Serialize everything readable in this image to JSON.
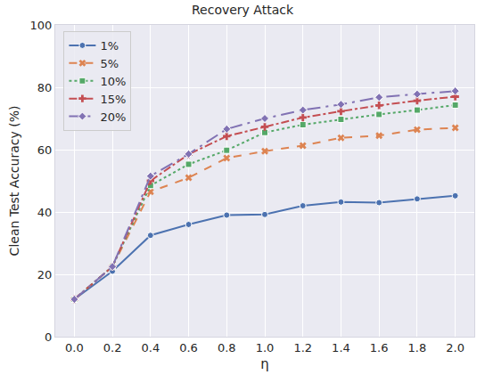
{
  "chart_data": {
    "type": "line",
    "title": "Recovery Attack",
    "x_label": "η",
    "y_label": "Clean Test Accuracy (%)",
    "x": [
      0.0,
      0.2,
      0.4,
      0.6,
      0.8,
      1.0,
      1.2,
      1.4,
      1.6,
      1.8,
      2.0
    ],
    "series": [
      {
        "name": "1%",
        "color": "#4c72b0",
        "marker": "circle",
        "line_style": "solid",
        "values": [
          12,
          21,
          32.5,
          36,
          39,
          39.2,
          42,
          43.2,
          43,
          44.2,
          45.2
        ]
      },
      {
        "name": "5%",
        "color": "#dd8452",
        "marker": "x",
        "line_style": "dash",
        "values": [
          12,
          22.5,
          46.5,
          51,
          57.3,
          59.5,
          61.3,
          63.8,
          64.5,
          66.4,
          67
        ]
      },
      {
        "name": "10%",
        "color": "#55a868",
        "marker": "square",
        "line_style": "dot",
        "values": [
          12,
          22.5,
          48.5,
          55.3,
          59.8,
          65.5,
          68,
          69.7,
          71.3,
          72.7,
          74.3
        ]
      },
      {
        "name": "15%",
        "color": "#c44e52",
        "marker": "cross",
        "line_style": "dashdot",
        "values": [
          12,
          22.5,
          50,
          58.5,
          64.3,
          67.3,
          70.3,
          72.3,
          74.2,
          75.7,
          77
        ]
      },
      {
        "name": "20%",
        "color": "#8172b3",
        "marker": "diamond",
        "line_style": "longdashdot",
        "values": [
          12,
          22.5,
          51.5,
          58.6,
          66.6,
          70,
          72.7,
          74.5,
          76.8,
          77.8,
          78.8
        ]
      }
    ],
    "xlim": [
      -0.1,
      2.1
    ],
    "xticks": [
      {
        "value": 0,
        "label": "0.0"
      },
      0.2,
      0.4,
      0.6,
      0.8,
      {
        "value": 1,
        "label": "1.0"
      },
      1.2,
      1.4,
      1.6,
      1.8,
      {
        "value": 2,
        "label": "2.0"
      }
    ],
    "ylim": [
      0,
      100
    ],
    "yticks": [
      0,
      20,
      40,
      60,
      80,
      100
    ],
    "grid": true,
    "legend": "upper left"
  }
}
